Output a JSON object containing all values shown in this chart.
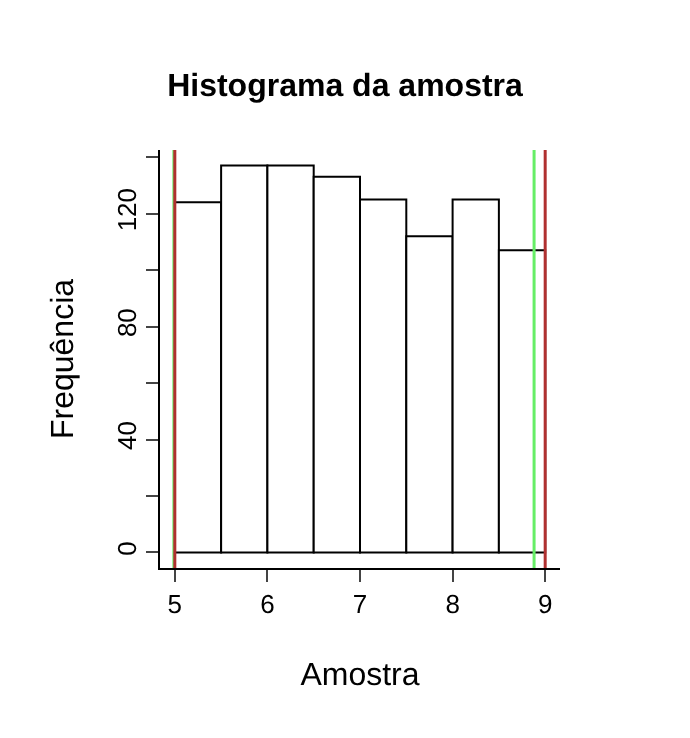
{
  "chart_data": {
    "type": "histogram",
    "title": "Histograma da amostra",
    "xlabel": "Amostra",
    "ylabel": "Frequência",
    "bins": [
      5,
      5.5,
      6,
      6.5,
      7,
      7.5,
      8,
      8.5,
      9
    ],
    "values": [
      124,
      137,
      137,
      133,
      125,
      112,
      125,
      107
    ],
    "color": "#ffffff",
    "xlim": [
      4.84,
      9.16
    ],
    "xticks": [
      5,
      6,
      7,
      8,
      9
    ],
    "ylim": [
      -5.5,
      142.5
    ],
    "yticks": [
      0,
      {
        "value": 20,
        "label": null
      },
      40,
      {
        "value": 60,
        "label": null
      },
      80,
      {
        "value": 100,
        "label": null
      },
      120,
      {
        "value": 140,
        "label": null
      }
    ],
    "ref_lines": [
      {
        "axis": "x",
        "value": 4.99,
        "color": "#66ee66"
      },
      {
        "axis": "x",
        "value": 5,
        "color": "#b03030"
      },
      {
        "axis": "x",
        "value": 8.88,
        "color": "#66ee66"
      },
      {
        "axis": "x",
        "value": 9,
        "color": "#b03030"
      }
    ]
  }
}
